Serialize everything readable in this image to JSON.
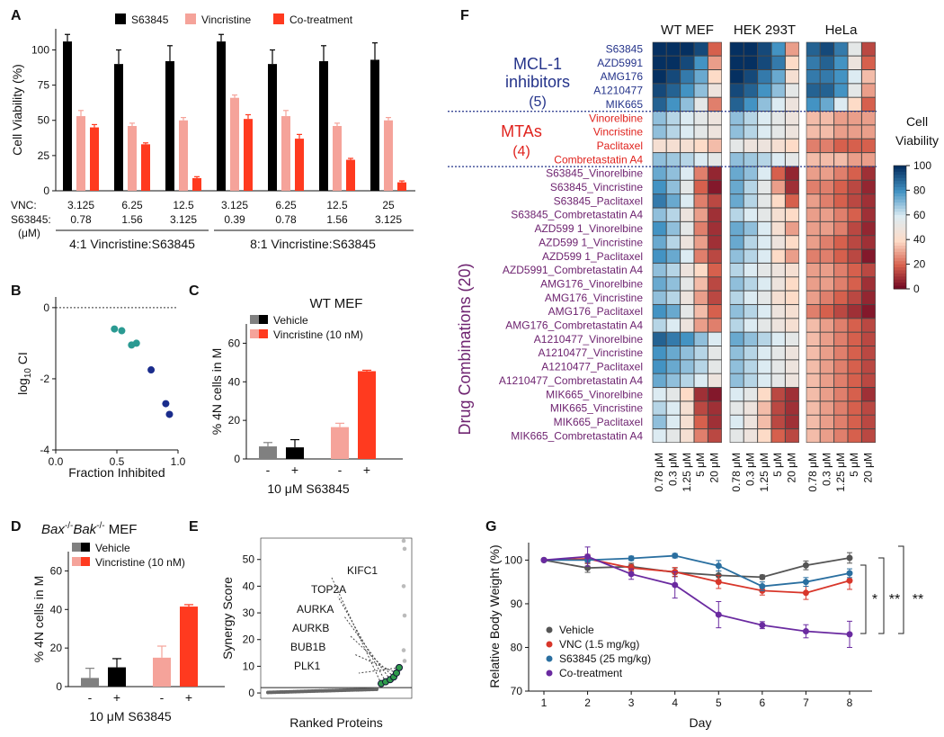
{
  "chart_data": [
    {
      "panel": "A",
      "type": "bar",
      "ylabel": "Cell Viability (%)",
      "ylim": [
        0,
        115
      ],
      "yticks": [
        0,
        25,
        50,
        75,
        100
      ],
      "legend": [
        "S63845",
        "Vincristine",
        "Co-treatment"
      ],
      "colors": {
        "S63845": "#000000",
        "Vincristine": "#f5a39a",
        "Co-treatment": "#ff3a1f"
      },
      "row_label_1": "VNC:",
      "row_label_2": "S63845:",
      "row_label_unit": "(μM)",
      "groups": [
        {
          "vnc": "3.125",
          "s63845": "0.78",
          "values": [
            106,
            53,
            45
          ],
          "errors": [
            5,
            4,
            2
          ]
        },
        {
          "vnc": "6.25",
          "s63845": "1.56",
          "values": [
            90,
            46,
            33
          ],
          "errors": [
            10,
            2,
            1
          ]
        },
        {
          "vnc": "12.5",
          "s63845": "3.125",
          "values": [
            92,
            50,
            9
          ],
          "errors": [
            11,
            2,
            1
          ]
        },
        {
          "vnc": "3.125",
          "s63845": "0.39",
          "values": [
            106,
            66,
            51
          ],
          "errors": [
            5,
            2,
            3
          ]
        },
        {
          "vnc": "6.25",
          "s63845": "0.78",
          "values": [
            90,
            53,
            37
          ],
          "errors": [
            10,
            4,
            3
          ]
        },
        {
          "vnc": "12.5",
          "s63845": "1.56",
          "values": [
            92,
            46,
            22
          ],
          "errors": [
            11,
            2,
            1
          ]
        },
        {
          "vnc": "25",
          "s63845": "3.125",
          "values": [
            93,
            50,
            6
          ],
          "errors": [
            12,
            2,
            1
          ]
        }
      ],
      "ratio_labels": [
        "4:1 Vincristine:S63845",
        "8:1 Vincristine:S63845"
      ]
    },
    {
      "panel": "B",
      "type": "scatter",
      "xlabel": "Fraction Inhibited",
      "ylabel": "log10 CI",
      "ylabel_main": "log",
      "ylabel_sub": "10",
      "ylabel_tail": " CI",
      "xlim": [
        0,
        1
      ],
      "ylim": [
        -4,
        0.3
      ],
      "xticks": [
        "0.0",
        "0.5",
        "1.0"
      ],
      "yticks": [
        "0",
        "-2",
        "-4"
      ],
      "points": [
        {
          "x": 0.48,
          "y": -0.6,
          "group": "4:1"
        },
        {
          "x": 0.54,
          "y": -0.65,
          "group": "4:1"
        },
        {
          "x": 0.62,
          "y": -1.05,
          "group": "4:1"
        },
        {
          "x": 0.66,
          "y": -1.0,
          "group": "4:1"
        },
        {
          "x": 0.78,
          "y": -1.75,
          "group": "8:1"
        },
        {
          "x": 0.9,
          "y": -2.7,
          "group": "8:1"
        },
        {
          "x": 0.93,
          "y": -3.0,
          "group": "8:1"
        }
      ],
      "colors": {
        "4:1": "#2a9a92",
        "8:1": "#1a2c8c"
      }
    },
    {
      "panel": "C",
      "type": "bar",
      "title": "WT MEF",
      "ylabel": "% 4N cells in M",
      "ylim": [
        0,
        70
      ],
      "yticks": [
        0,
        20,
        40,
        60
      ],
      "legend": [
        "Vehicle",
        "Vincristine (10 nM)"
      ],
      "xlabel": "10 μM S63845",
      "bars": [
        {
          "label": "-",
          "value": 6.5,
          "error": 2,
          "color": "#808080"
        },
        {
          "label": "+",
          "value": 6,
          "error": 4,
          "color": "#000000"
        },
        {
          "label": "-",
          "value": 16.5,
          "error": 2,
          "color": "#f5a39a"
        },
        {
          "label": "+",
          "value": 45.5,
          "error": 0.5,
          "color": "#ff3a1f"
        }
      ]
    },
    {
      "panel": "D",
      "type": "bar",
      "title": "Bax-/-Bak-/- MEF",
      "title_parts": [
        "Bax",
        "-/-",
        "Bak",
        "-/-",
        " MEF"
      ],
      "ylabel": "% 4N cells in M",
      "ylim": [
        0,
        70
      ],
      "yticks": [
        0,
        20,
        40,
        60
      ],
      "legend": [
        "Vehicle",
        "Vincristine (10 nM)"
      ],
      "xlabel": "10 μM S63845",
      "bars": [
        {
          "label": "-",
          "value": 4.5,
          "error": 5,
          "color": "#808080"
        },
        {
          "label": "+",
          "value": 10,
          "error": 4.5,
          "color": "#000000"
        },
        {
          "label": "-",
          "value": 15,
          "error": 6,
          "color": "#f5a39a"
        },
        {
          "label": "+",
          "value": 41.5,
          "error": 1,
          "color": "#ff3a1f"
        }
      ]
    },
    {
      "panel": "E",
      "type": "scatter",
      "xlabel": "Ranked Proteins",
      "ylabel": "Synergy Score",
      "ylim": [
        -2,
        58
      ],
      "yticks": [
        0,
        10,
        20,
        30,
        40,
        50
      ],
      "threshold": 2,
      "highlighted": [
        "KIFC1",
        "TOP2A",
        "AURKA",
        "AURKB",
        "BUB1B",
        "PLK1"
      ],
      "highlight_scores": [
        3.5,
        4.2,
        5.0,
        6.0,
        7.5,
        9.5
      ],
      "outlier_scores": [
        57,
        54,
        40,
        29,
        16,
        12
      ]
    },
    {
      "panel": "F",
      "type": "heatmap",
      "columns_groups": [
        "WT MEF",
        "HEK 293T",
        "HeLa"
      ],
      "doses": [
        "0.78 μM",
        "0.3 μM",
        "1.25 μM",
        "5 μM",
        "20 μM"
      ],
      "colorbar_title": [
        "Cell",
        "Viability"
      ],
      "colorbar_ticks": [
        0,
        20,
        40,
        60,
        80,
        100
      ],
      "categories": [
        {
          "label": [
            "MCL-1",
            "inhibitors",
            "(5)"
          ],
          "color": "#24338a",
          "rows": [
            "S63845",
            "AZD5991",
            "AMG176",
            "A1210477",
            "MIK665"
          ]
        },
        {
          "label": [
            "MTAs",
            "(4)"
          ],
          "color": "#e0221d",
          "rows": [
            "Vinorelbine",
            "Vincristine",
            "Paclitaxel",
            "Combretastatin A4"
          ]
        },
        {
          "label": [
            "Drug Combinations (20)"
          ],
          "color": "#6e2370",
          "rows": [
            "S63845_Vinorelbine",
            "S63845_Vincristine",
            "S63845_Paclitaxel",
            "S63845_Combretastatin A4",
            "AZD599 1_Vinorelbine",
            "AZD599 1_Vincristine",
            "AZD599 1_Paclitaxel",
            "AZD5991_Combretastatin A4",
            "AMG176_Vinorelbine",
            "AMG176_Vincristine",
            "AMG176_Paclitaxel",
            "AMG176_Combretastatin A4",
            "A1210477_Vinorelbine",
            "A1210477_Vincristine",
            "A1210477_Paclitaxel",
            "A1210477_Combretastatin A4",
            "MIK665_Vinorelbine",
            "MIK665_Vincristine",
            "MIK665_Paclitaxel",
            "MIK665_Combretastatin A4"
          ]
        }
      ],
      "values": {
        "WT MEF": [
          [
            100,
            100,
            100,
            95,
            20
          ],
          [
            100,
            100,
            95,
            80,
            30
          ],
          [
            100,
            95,
            85,
            75,
            40
          ],
          [
            95,
            90,
            80,
            70,
            50
          ],
          [
            90,
            80,
            70,
            55,
            25
          ],
          [
            70,
            65,
            60,
            55,
            50
          ],
          [
            70,
            65,
            60,
            55,
            50
          ],
          [
            45,
            45,
            45,
            40,
            35
          ],
          [
            70,
            68,
            65,
            60,
            55
          ],
          [
            75,
            70,
            60,
            25,
            8
          ],
          [
            80,
            70,
            55,
            20,
            5
          ],
          [
            85,
            75,
            60,
            25,
            15
          ],
          [
            70,
            65,
            50,
            30,
            10
          ],
          [
            80,
            70,
            55,
            25,
            10
          ],
          [
            75,
            65,
            50,
            30,
            10
          ],
          [
            80,
            75,
            60,
            25,
            15
          ],
          [
            70,
            65,
            50,
            40,
            20
          ],
          [
            75,
            70,
            55,
            35,
            15
          ],
          [
            70,
            65,
            50,
            30,
            15
          ],
          [
            80,
            75,
            55,
            35,
            20
          ],
          [
            65,
            60,
            50,
            30,
            25
          ],
          [
            90,
            85,
            80,
            70,
            60
          ],
          [
            80,
            75,
            70,
            65,
            55
          ],
          [
            80,
            75,
            70,
            65,
            55
          ],
          [
            75,
            70,
            65,
            60,
            50
          ],
          [
            60,
            55,
            40,
            10,
            5
          ],
          [
            65,
            60,
            45,
            15,
            10
          ],
          [
            70,
            60,
            45,
            20,
            10
          ],
          [
            60,
            55,
            45,
            25,
            15
          ]
        ],
        "HEK 293T": [
          [
            100,
            100,
            95,
            80,
            30
          ],
          [
            100,
            100,
            95,
            85,
            40
          ],
          [
            100,
            95,
            85,
            75,
            45
          ],
          [
            95,
            90,
            80,
            70,
            55
          ],
          [
            90,
            80,
            70,
            60,
            50
          ],
          [
            70,
            65,
            60,
            55,
            50
          ],
          [
            70,
            65,
            60,
            55,
            50
          ],
          [
            55,
            50,
            50,
            45,
            40
          ],
          [
            70,
            68,
            65,
            60,
            55
          ],
          [
            75,
            70,
            60,
            20,
            8
          ],
          [
            75,
            65,
            55,
            30,
            10
          ],
          [
            75,
            65,
            55,
            40,
            20
          ],
          [
            65,
            60,
            55,
            45,
            40
          ],
          [
            75,
            70,
            60,
            45,
            30
          ],
          [
            75,
            65,
            60,
            50,
            40
          ],
          [
            70,
            65,
            60,
            40,
            30
          ],
          [
            65,
            60,
            55,
            50,
            45
          ],
          [
            70,
            65,
            60,
            50,
            40
          ],
          [
            65,
            60,
            55,
            45,
            40
          ],
          [
            70,
            65,
            60,
            50,
            45
          ],
          [
            65,
            60,
            55,
            50,
            45
          ],
          [
            75,
            70,
            65,
            60,
            55
          ],
          [
            70,
            65,
            60,
            55,
            50
          ],
          [
            70,
            65,
            60,
            55,
            50
          ],
          [
            70,
            65,
            60,
            55,
            50
          ],
          [
            60,
            55,
            40,
            15,
            10
          ],
          [
            55,
            50,
            35,
            15,
            10
          ],
          [
            60,
            50,
            35,
            15,
            10
          ],
          [
            55,
            50,
            40,
            20,
            15
          ]
        ],
        "HeLa": [
          [
            90,
            95,
            85,
            55,
            15
          ],
          [
            85,
            90,
            80,
            50,
            20
          ],
          [
            85,
            85,
            80,
            60,
            35
          ],
          [
            90,
            90,
            80,
            55,
            30
          ],
          [
            80,
            75,
            60,
            40,
            20
          ],
          [
            35,
            35,
            30,
            30,
            30
          ],
          [
            35,
            35,
            30,
            30,
            30
          ],
          [
            25,
            25,
            20,
            20,
            20
          ],
          [
            35,
            35,
            35,
            30,
            30
          ],
          [
            30,
            30,
            25,
            20,
            10
          ],
          [
            25,
            25,
            20,
            15,
            8
          ],
          [
            30,
            25,
            20,
            15,
            10
          ],
          [
            30,
            30,
            25,
            20,
            10
          ],
          [
            30,
            30,
            25,
            15,
            8
          ],
          [
            30,
            25,
            20,
            15,
            10
          ],
          [
            25,
            25,
            20,
            15,
            5
          ],
          [
            30,
            30,
            25,
            20,
            15
          ],
          [
            30,
            30,
            25,
            20,
            10
          ],
          [
            30,
            25,
            20,
            15,
            8
          ],
          [
            25,
            20,
            15,
            10,
            5
          ],
          [
            35,
            30,
            25,
            20,
            15
          ],
          [
            35,
            30,
            25,
            20,
            15
          ],
          [
            35,
            30,
            25,
            20,
            15
          ],
          [
            35,
            30,
            25,
            20,
            15
          ],
          [
            35,
            30,
            25,
            20,
            15
          ],
          [
            35,
            30,
            25,
            20,
            10
          ],
          [
            35,
            30,
            25,
            20,
            15
          ],
          [
            35,
            30,
            25,
            20,
            15
          ],
          [
            35,
            30,
            25,
            20,
            15
          ]
        ]
      }
    },
    {
      "panel": "G",
      "type": "line",
      "xlabel": "Day",
      "ylabel": "Relative Body Weight (%)",
      "x": [
        1,
        2,
        3,
        4,
        5,
        6,
        7,
        8
      ],
      "ylim": [
        70,
        104
      ],
      "yticks": [
        70,
        80,
        90,
        100
      ],
      "series": [
        {
          "name": "Vehicle",
          "color": "#555555",
          "values": [
            100,
            98.2,
            98.5,
            97.2,
            96.5,
            96.1,
            98.8,
            100.5
          ],
          "errors": [
            0.3,
            1,
            0.8,
            1,
            1,
            0.5,
            1,
            1.2
          ]
        },
        {
          "name": "VNC (1.5 mg/kg)",
          "color": "#d8362a",
          "values": [
            100,
            100.3,
            98.2,
            97.3,
            95,
            93,
            92.5,
            95.3
          ],
          "errors": [
            0.3,
            1,
            0.8,
            1,
            1.5,
            1,
            1.5,
            2
          ]
        },
        {
          "name": "S63845 (25 mg/kg)",
          "color": "#2a6fa0",
          "values": [
            100,
            100,
            100.4,
            101,
            98.7,
            94,
            95,
            97
          ],
          "errors": [
            0.3,
            0.5,
            0.5,
            0.5,
            1.2,
            1,
            1,
            1
          ]
        },
        {
          "name": "Co-treatment",
          "color": "#6a2aa0",
          "values": [
            100,
            100.8,
            96.8,
            94.3,
            87.5,
            85.1,
            83.7,
            83
          ],
          "errors": [
            0.3,
            2.2,
            1.2,
            3,
            3,
            0.8,
            1.5,
            3
          ]
        }
      ],
      "significance": [
        "*",
        "**",
        "**"
      ]
    }
  ],
  "panel_labels": [
    "A",
    "B",
    "C",
    "D",
    "E",
    "F",
    "G"
  ]
}
